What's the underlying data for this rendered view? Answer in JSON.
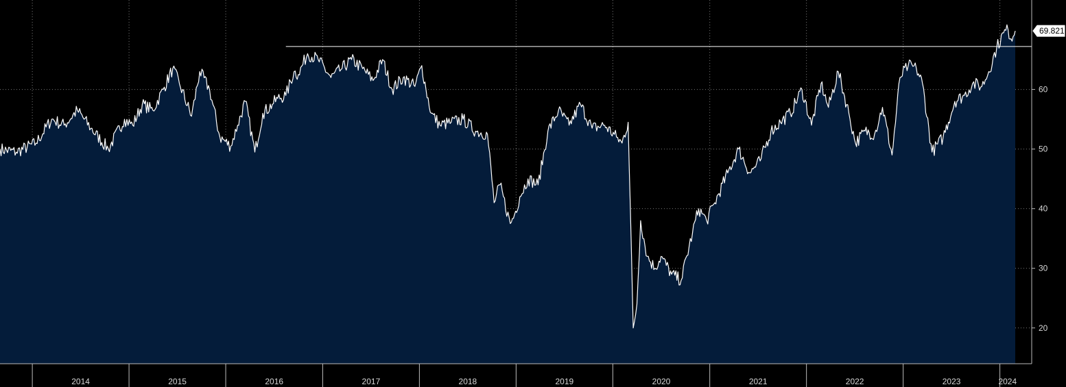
{
  "chart_data": {
    "type": "area",
    "title": "",
    "xlabel": "",
    "ylabel": "",
    "x_ticks": [
      "2014",
      "2015",
      "2016",
      "2017",
      "2018",
      "2019",
      "2020",
      "2021",
      "2022",
      "2023",
      "2024"
    ],
    "y_ticks": [
      20,
      30,
      40,
      50,
      60
    ],
    "ylim": [
      14,
      75
    ],
    "xlim": [
      "2013-09-01",
      "2024-02-28"
    ],
    "grid": true,
    "last_value_label": "69.821",
    "reference_line": {
      "value": 67.2,
      "start": "2016-08-15"
    },
    "colors": {
      "background": "#000000",
      "area": "#041c3a",
      "line": "#ffffff",
      "grid": "#7a7a7a",
      "text": "#d6d6d6"
    },
    "series": [
      {
        "x": [
          "2013-09-01",
          "2013-11-01",
          "2014-01-15",
          "2014-03-15",
          "2014-05-01",
          "2014-06-20",
          "2014-08-10",
          "2014-10-15",
          "2014-12-15",
          "2015-01-15",
          "2015-02-20",
          "2015-04-01",
          "2015-05-10",
          "2015-06-15",
          "2015-07-10",
          "2015-08-25",
          "2015-09-25",
          "2015-11-01",
          "2015-12-10",
          "2016-01-20",
          "2016-02-15",
          "2016-03-15",
          "2016-04-20",
          "2016-05-20",
          "2016-06-25",
          "2016-07-15",
          "2016-08-15",
          "2016-09-15",
          "2016-10-01",
          "2016-11-05",
          "2016-12-15",
          "2017-02-01",
          "2017-03-15",
          "2017-04-20",
          "2017-06-01",
          "2017-07-10",
          "2017-08-15",
          "2017-09-20",
          "2017-11-01",
          "2017-12-15",
          "2018-01-10",
          "2018-01-26",
          "2018-02-15",
          "2018-03-20",
          "2018-05-01",
          "2018-06-15",
          "2018-08-01",
          "2018-09-15",
          "2018-10-10",
          "2018-11-01",
          "2018-12-10",
          "2018-12-26",
          "2019-01-15",
          "2019-02-15",
          "2019-03-25",
          "2019-05-01",
          "2019-06-10",
          "2019-07-20",
          "2019-09-01",
          "2019-10-15",
          "2019-12-01",
          "2020-01-15",
          "2020-02-05",
          "2020-02-28",
          "2020-03-18",
          "2020-04-01",
          "2020-04-15",
          "2020-05-10",
          "2020-06-08",
          "2020-07-01",
          "2020-08-10",
          "2020-09-15",
          "2020-10-28",
          "2020-11-20",
          "2020-12-20",
          "2021-01-20",
          "2021-03-10",
          "2021-04-20",
          "2021-06-01",
          "2021-07-10",
          "2021-08-20",
          "2021-09-25",
          "2021-11-01",
          "2021-12-15",
          "2022-01-20",
          "2022-02-25",
          "2022-03-25",
          "2022-05-01",
          "2022-06-10",
          "2022-07-05",
          "2022-08-10",
          "2022-09-15",
          "2022-10-15",
          "2022-11-20",
          "2022-12-20",
          "2023-01-20",
          "2023-02-20",
          "2023-03-15",
          "2023-04-20",
          "2023-06-01",
          "2023-07-15",
          "2023-08-20",
          "2023-09-20",
          "2023-10-25",
          "2023-11-20",
          "2023-12-20",
          "2024-01-15",
          "2024-02-01",
          "2024-02-12",
          "2024-02-28"
        ],
        "values": [
          50,
          49.5,
          51,
          55,
          54,
          56.5,
          53.5,
          50,
          55,
          54,
          57.5,
          56.5,
          60,
          63.5,
          61,
          55.5,
          63,
          60,
          52,
          50.5,
          54,
          58,
          49.5,
          56,
          57.5,
          58.5,
          59,
          63,
          62.5,
          66,
          65,
          62,
          63.5,
          65,
          63.5,
          61.5,
          65,
          60,
          62,
          60.5,
          64,
          60,
          56,
          54,
          54.5,
          55,
          53,
          52.5,
          41,
          44,
          37.5,
          39,
          42,
          45,
          44,
          53,
          56.5,
          54,
          57.5,
          53.5,
          54,
          52,
          51,
          54.5,
          20,
          24,
          38,
          32,
          30,
          32,
          29,
          28,
          36,
          40,
          38,
          41,
          46,
          50,
          46,
          48,
          53,
          54.5,
          56,
          60,
          54,
          61,
          57,
          63,
          56,
          51,
          53,
          52.5,
          57,
          49,
          62,
          64,
          63.5,
          61,
          49.5,
          52,
          58,
          59,
          61,
          60.5,
          63,
          67,
          69.5,
          70,
          68.5,
          69.821
        ]
      }
    ]
  }
}
